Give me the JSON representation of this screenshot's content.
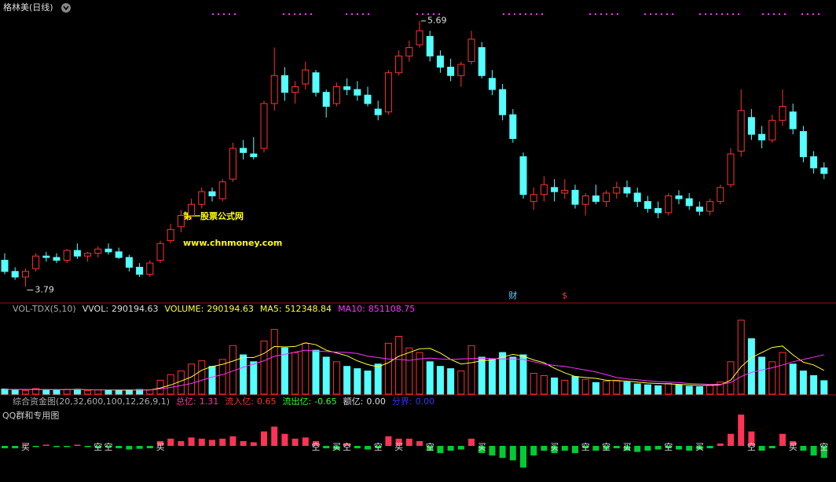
{
  "header": {
    "title": "格林美(日线)"
  },
  "watermark": {
    "line1": "第一股票公式网",
    "line2": "www.chnmoney.com"
  },
  "chart_data": [
    {
      "type": "candlestick",
      "ylim": [
        3.68,
        5.84
      ],
      "up_color": "#ff3232",
      "down_color": "#54ffff",
      "candles": [
        [
          3.98,
          4.03,
          3.88,
          3.9
        ],
        [
          3.9,
          3.93,
          3.84,
          3.86
        ],
        [
          3.86,
          3.92,
          3.79,
          3.9
        ],
        [
          3.92,
          4.03,
          3.9,
          4.01
        ],
        [
          4.01,
          4.04,
          3.97,
          4.0
        ],
        [
          4.0,
          4.03,
          3.96,
          3.98
        ],
        [
          3.98,
          4.06,
          3.96,
          4.05
        ],
        [
          4.05,
          4.1,
          3.99,
          4.01
        ],
        [
          4.01,
          4.04,
          3.97,
          4.03
        ],
        [
          4.03,
          4.08,
          4.0,
          4.06
        ],
        [
          4.06,
          4.1,
          4.02,
          4.04
        ],
        [
          4.04,
          4.07,
          3.99,
          4.0
        ],
        [
          4.0,
          4.02,
          3.9,
          3.93
        ],
        [
          3.93,
          3.96,
          3.86,
          3.88
        ],
        [
          3.88,
          3.98,
          3.86,
          3.96
        ],
        [
          3.98,
          4.12,
          3.96,
          4.1
        ],
        [
          4.12,
          4.24,
          4.1,
          4.2
        ],
        [
          4.22,
          4.34,
          4.18,
          4.3
        ],
        [
          4.3,
          4.42,
          4.27,
          4.38
        ],
        [
          4.38,
          4.5,
          4.35,
          4.47
        ],
        [
          4.47,
          4.5,
          4.4,
          4.44
        ],
        [
          4.42,
          4.56,
          4.4,
          4.54
        ],
        [
          4.56,
          4.82,
          4.54,
          4.78
        ],
        [
          4.78,
          4.84,
          4.7,
          4.75
        ],
        [
          4.74,
          4.86,
          4.7,
          4.72
        ],
        [
          4.78,
          5.12,
          4.75,
          5.1
        ],
        [
          5.1,
          5.5,
          5.05,
          5.3
        ],
        [
          5.3,
          5.36,
          5.12,
          5.18
        ],
        [
          5.18,
          5.26,
          5.1,
          5.22
        ],
        [
          5.24,
          5.4,
          5.2,
          5.34
        ],
        [
          5.32,
          5.34,
          5.15,
          5.18
        ],
        [
          5.18,
          5.2,
          5.0,
          5.08
        ],
        [
          5.1,
          5.25,
          5.08,
          5.22
        ],
        [
          5.22,
          5.28,
          5.16,
          5.2
        ],
        [
          5.2,
          5.26,
          5.12,
          5.16
        ],
        [
          5.16,
          5.22,
          5.08,
          5.1
        ],
        [
          5.06,
          5.12,
          4.98,
          5.02
        ],
        [
          5.04,
          5.34,
          5.02,
          5.32
        ],
        [
          5.32,
          5.48,
          5.3,
          5.44
        ],
        [
          5.44,
          5.55,
          5.4,
          5.5
        ],
        [
          5.52,
          5.69,
          5.5,
          5.62
        ],
        [
          5.58,
          5.62,
          5.4,
          5.44
        ],
        [
          5.44,
          5.48,
          5.32,
          5.36
        ],
        [
          5.36,
          5.42,
          5.26,
          5.3
        ],
        [
          5.3,
          5.4,
          5.22,
          5.38
        ],
        [
          5.4,
          5.62,
          5.38,
          5.56
        ],
        [
          5.5,
          5.54,
          5.28,
          5.3
        ],
        [
          5.28,
          5.34,
          5.16,
          5.2
        ],
        [
          5.2,
          5.24,
          4.98,
          5.02
        ],
        [
          5.02,
          5.06,
          4.82,
          4.85
        ],
        [
          4.72,
          4.75,
          4.42,
          4.45
        ],
        [
          4.4,
          4.5,
          4.34,
          4.45
        ],
        [
          4.45,
          4.58,
          4.4,
          4.52
        ],
        [
          4.5,
          4.56,
          4.4,
          4.47
        ],
        [
          4.46,
          4.56,
          4.42,
          4.48
        ],
        [
          4.48,
          4.52,
          4.35,
          4.38
        ],
        [
          4.38,
          4.46,
          4.3,
          4.44
        ],
        [
          4.44,
          4.52,
          4.38,
          4.4
        ],
        [
          4.4,
          4.48,
          4.36,
          4.46
        ],
        [
          4.46,
          4.54,
          4.42,
          4.5
        ],
        [
          4.5,
          4.55,
          4.43,
          4.46
        ],
        [
          4.46,
          4.5,
          4.36,
          4.4
        ],
        [
          4.4,
          4.44,
          4.32,
          4.35
        ],
        [
          4.35,
          4.4,
          4.28,
          4.32
        ],
        [
          4.32,
          4.46,
          4.3,
          4.44
        ],
        [
          4.44,
          4.48,
          4.38,
          4.42
        ],
        [
          4.42,
          4.46,
          4.34,
          4.37
        ],
        [
          4.36,
          4.4,
          4.3,
          4.33
        ],
        [
          4.33,
          4.42,
          4.3,
          4.4
        ],
        [
          4.4,
          4.52,
          4.38,
          4.5
        ],
        [
          4.52,
          4.78,
          4.5,
          4.74
        ],
        [
          4.76,
          5.2,
          4.72,
          5.05
        ],
        [
          5.0,
          5.06,
          4.84,
          4.88
        ],
        [
          4.88,
          4.94,
          4.78,
          4.84
        ],
        [
          4.84,
          5.02,
          4.82,
          4.98
        ],
        [
          4.98,
          5.2,
          4.94,
          5.08
        ],
        [
          5.04,
          5.1,
          4.88,
          4.92
        ],
        [
          4.9,
          4.94,
          4.68,
          4.72
        ],
        [
          4.72,
          4.76,
          4.6,
          4.64
        ],
        [
          4.64,
          4.68,
          4.56,
          4.6
        ]
      ],
      "events": [
        {
          "index": 49,
          "label": "财"
        },
        {
          "index": 54,
          "label": "$"
        }
      ]
    },
    {
      "type": "volume",
      "title": "VOL-TDX(5,10)",
      "ylim": [
        0,
        1700000
      ],
      "legend": [
        {
          "label": "VVOL:",
          "value": 290194.63,
          "color": "#dddddd"
        },
        {
          "label": "VOLUME:",
          "value": 290194.63,
          "color": "#ffff33"
        },
        {
          "label": "MA5:",
          "value": 512348.84,
          "color": "#ffff33"
        },
        {
          "label": "MA10:",
          "value": 851108.75,
          "color": "#ff33ff"
        }
      ],
      "values": [
        110000,
        90000,
        80000,
        120000,
        95000,
        85000,
        100000,
        105000,
        80000,
        90000,
        85000,
        75000,
        95000,
        100000,
        90000,
        300000,
        420000,
        500000,
        650000,
        720000,
        600000,
        750000,
        1050000,
        850000,
        700000,
        1150000,
        1400000,
        1000000,
        900000,
        1100000,
        950000,
        800000,
        700000,
        600000,
        550000,
        500000,
        650000,
        1100000,
        1250000,
        1000000,
        900000,
        700000,
        600000,
        550000,
        500000,
        1050000,
        800000,
        750000,
        900000,
        800000,
        850000,
        450000,
        400000,
        350000,
        300000,
        380000,
        320000,
        250000,
        280000,
        300000,
        260000,
        220000,
        200000,
        180000,
        230000,
        200000,
        170000,
        160000,
        190000,
        260000,
        700000,
        1600000,
        1200000,
        800000,
        700000,
        900000,
        650000,
        500000,
        400000,
        290194.63
      ],
      "series": [
        {
          "name": "MA5",
          "color": "#ffff33",
          "values": [
            100000,
            100000,
            99000,
            97000,
            97000,
            96000,
            97000,
            101000,
            93000,
            92000,
            92000,
            87000,
            85000,
            89000,
            89000,
            132000,
            197000,
            281000,
            372000,
            518000,
            598000,
            644000,
            714000,
            794000,
            790000,
            880000,
            1030000,
            1020000,
            1030000,
            1110000,
            1070000,
            950000,
            890000,
            830000,
            720000,
            640000,
            590000,
            680000,
            820000,
            900000,
            980000,
            990000,
            890000,
            750000,
            650000,
            680000,
            720000,
            740000,
            800000,
            860000,
            820000,
            740000,
            680000,
            560000,
            460000,
            380000,
            360000,
            340000,
            300000,
            290000,
            280000,
            260000,
            240000,
            230000,
            220000,
            210000,
            200000,
            190000,
            190000,
            200000,
            300000,
            590000,
            790000,
            900000,
            1010000,
            1040000,
            850000,
            690000,
            630000,
            512348.84
          ]
        },
        {
          "name": "MA10",
          "color": "#ff33ff",
          "values": [
            100000,
            100000,
            100000,
            99000,
            98000,
            97000,
            97000,
            97000,
            95000,
            94000,
            94000,
            94000,
            93000,
            90000,
            90000,
            112000,
            145000,
            185000,
            230000,
            300000,
            370000,
            420000,
            500000,
            580000,
            650000,
            720000,
            820000,
            860000,
            910000,
            950000,
            930000,
            920000,
            910000,
            900000,
            880000,
            820000,
            790000,
            760000,
            750000,
            730000,
            760000,
            780000,
            760000,
            750000,
            760000,
            770000,
            780000,
            770000,
            760000,
            760000,
            750000,
            700000,
            650000,
            620000,
            600000,
            560000,
            520000,
            480000,
            420000,
            360000,
            330000,
            310000,
            290000,
            270000,
            260000,
            250000,
            230000,
            220000,
            210000,
            210000,
            250000,
            380000,
            470000,
            520000,
            570000,
            630000,
            700000,
            750000,
            800000,
            851108.75
          ]
        }
      ]
    },
    {
      "type": "flow",
      "title": "综合资金图(20,32,600,100,12,26,9,1)",
      "subtitle": "QQ群和专用图",
      "ylim": [
        -1.5,
        1.5
      ],
      "positive_color": "#ff3355",
      "negative_color": "#00cc33",
      "legend": [
        {
          "label": "总亿:",
          "value": 1.31,
          "color": "#ff3399"
        },
        {
          "label": "流入亿:",
          "value": 0.65,
          "color": "#ff3232"
        },
        {
          "label": "流出亿:",
          "value": -0.65,
          "color": "#33ff33"
        },
        {
          "label": "额亿:",
          "value": {
            "value": 0,
            "label": "0.00"
          },
          "color": "#dddddd"
        },
        {
          "label": "分界:",
          "value": {
            "value": 0,
            "label": "0.00"
          },
          "color": "#3333ff"
        }
      ],
      "values": [
        -0.1,
        -0.1,
        0.05,
        -0.05,
        0.05,
        -0.05,
        -0.05,
        0.05,
        -0.05,
        -0.1,
        -0.05,
        -0.1,
        -0.15,
        -0.12,
        -0.1,
        0.2,
        0.3,
        0.2,
        0.35,
        0.3,
        0.25,
        0.3,
        0.4,
        0.2,
        0.15,
        0.6,
        0.8,
        0.5,
        0.3,
        0.35,
        0.2,
        -0.1,
        -0.15,
        0.1,
        -0.1,
        -0.15,
        -0.1,
        0.4,
        0.3,
        0.3,
        0.2,
        -0.2,
        -0.3,
        -0.2,
        -0.15,
        0.3,
        -0.3,
        -0.4,
        -0.5,
        -0.6,
        -0.9,
        -0.4,
        -0.2,
        -0.3,
        -0.2,
        -0.3,
        -0.1,
        -0.2,
        -0.15,
        -0.1,
        -0.2,
        -0.25,
        -0.2,
        -0.15,
        -0.1,
        -0.15,
        -0.2,
        -0.15,
        -0.1,
        0.1,
        0.5,
        1.3,
        0.6,
        -0.2,
        -0.1,
        0.5,
        0.2,
        -0.2,
        -0.4,
        -0.5
      ],
      "signals": [
        null,
        null,
        "买",
        null,
        null,
        null,
        null,
        null,
        null,
        "空",
        "空",
        null,
        null,
        null,
        null,
        "买",
        null,
        null,
        null,
        null,
        null,
        null,
        null,
        null,
        null,
        null,
        null,
        null,
        null,
        null,
        "空",
        null,
        "买",
        "空",
        null,
        null,
        "空",
        null,
        "买",
        null,
        null,
        "空",
        null,
        null,
        null,
        null,
        "买",
        null,
        null,
        null,
        null,
        null,
        null,
        "买",
        null,
        null,
        "空",
        null,
        "空",
        null,
        "买",
        null,
        null,
        null,
        "空",
        null,
        null,
        "买",
        null,
        null,
        null,
        null,
        "空",
        null,
        null,
        null,
        "买",
        null,
        null,
        "空"
      ]
    }
  ]
}
